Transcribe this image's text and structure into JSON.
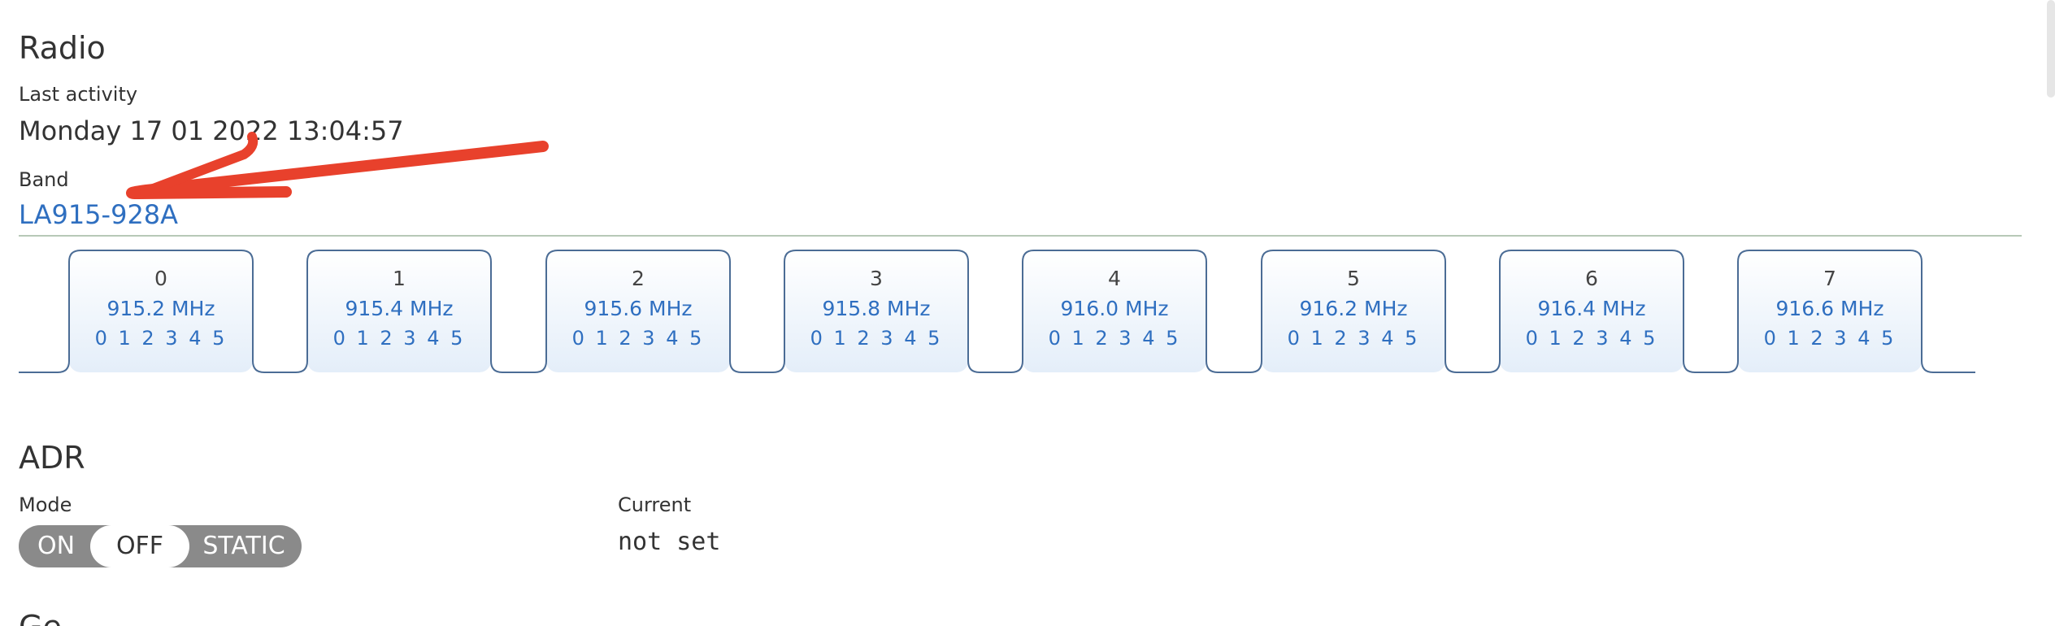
{
  "radio": {
    "title": "Radio",
    "last_activity_label": "Last activity",
    "last_activity_value": "Monday 17 01 2022 13:04:57",
    "band_label": "Band",
    "band_value": "LA915-928A"
  },
  "channels": [
    {
      "index": "0",
      "frequency": "915.2 MHz",
      "data_rates": "0 1 2 3 4 5"
    },
    {
      "index": "1",
      "frequency": "915.4 MHz",
      "data_rates": "0 1 2 3 4 5"
    },
    {
      "index": "2",
      "frequency": "915.6 MHz",
      "data_rates": "0 1 2 3 4 5"
    },
    {
      "index": "3",
      "frequency": "915.8 MHz",
      "data_rates": "0 1 2 3 4 5"
    },
    {
      "index": "4",
      "frequency": "916.0 MHz",
      "data_rates": "0 1 2 3 4 5"
    },
    {
      "index": "5",
      "frequency": "916.2 MHz",
      "data_rates": "0 1 2 3 4 5"
    },
    {
      "index": "6",
      "frequency": "916.4 MHz",
      "data_rates": "0 1 2 3 4 5"
    },
    {
      "index": "7",
      "frequency": "916.6 MHz",
      "data_rates": "0 1 2 3 4 5"
    }
  ],
  "adr": {
    "title": "ADR",
    "mode_label": "Mode",
    "mode_options": [
      "ON",
      "OFF",
      "STATIC"
    ],
    "mode_selected": "OFF",
    "current_label": "Current",
    "current_value": "not set"
  },
  "next_section": {
    "title": "Ge"
  },
  "colors": {
    "link": "#2f6fc0",
    "channel_border": "#4b6c95",
    "channel_fill_top": "#ffffff",
    "channel_fill_bottom": "#e4eef9",
    "toggle_bg": "#8a8a8a",
    "annotation": "#e8412c"
  }
}
